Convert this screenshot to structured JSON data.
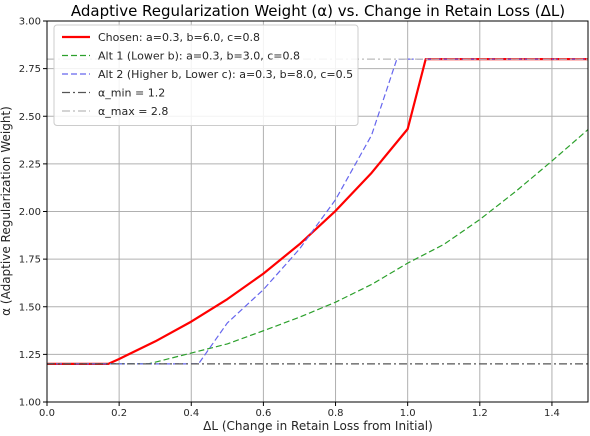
{
  "chart_data": {
    "type": "line",
    "title": "Adaptive Regularization Weight (α) vs. Change in Retain Loss (ΔL)",
    "xlabel": "ΔL (Change in Retain Loss from Initial)",
    "ylabel": "α (Adaptive Regularization Weight)",
    "xlim": [
      0,
      1.5
    ],
    "ylim": [
      1.0,
      3.0
    ],
    "xticks": [
      "0.0",
      "0.2",
      "0.4",
      "0.6",
      "0.8",
      "1.0",
      "1.2",
      "1.4"
    ],
    "yticks": [
      "1.00",
      "1.25",
      "1.50",
      "1.75",
      "2.00",
      "2.25",
      "2.50",
      "2.75",
      "3.00"
    ],
    "grid": true,
    "legend_position": "top-left",
    "series": [
      {
        "name": "Chosen: a=0.3, b=6.0, c=0.8",
        "color": "#ff0000",
        "style": "solid",
        "x": [
          0.0,
          0.17,
          0.2,
          0.3,
          0.4,
          0.5,
          0.6,
          0.7,
          0.8,
          0.9,
          1.0,
          1.05,
          1.5
        ],
        "y": [
          1.2,
          1.2,
          1.226,
          1.318,
          1.422,
          1.54,
          1.674,
          1.828,
          2.003,
          2.203,
          2.433,
          2.8,
          2.8
        ]
      },
      {
        "name": "Alt 1 (Lower b): a=0.3, b=3.0, c=0.8",
        "color": "#2ca02c",
        "style": "dashed",
        "x": [
          0.0,
          0.28,
          0.3,
          0.4,
          0.5,
          0.6,
          0.7,
          0.8,
          0.9,
          1.0,
          1.1,
          1.2,
          1.3,
          1.4,
          1.5
        ],
        "y": [
          1.2,
          1.2,
          1.209,
          1.257,
          1.305,
          1.374,
          1.445,
          1.524,
          1.617,
          1.729,
          1.827,
          1.958,
          2.106,
          2.265,
          2.43
        ]
      },
      {
        "name": "Alt 2 (Higher b, Lower c): a=0.3, b=8.0, c=0.5",
        "color": "#6666ee",
        "style": "dashed",
        "x": [
          0.0,
          0.42,
          0.5,
          0.6,
          0.7,
          0.8,
          0.9,
          0.97,
          1.5
        ],
        "y": [
          1.2,
          1.2,
          1.415,
          1.59,
          1.803,
          2.062,
          2.401,
          2.8,
          2.8
        ]
      },
      {
        "name": "α_min = 1.2",
        "color": "#555555",
        "style": "dashdot",
        "x": [
          0.0,
          1.5
        ],
        "y": [
          1.2,
          1.2
        ]
      },
      {
        "name": "α_max = 2.8",
        "color": "#bbbbbb",
        "style": "dashdot",
        "x": [
          0.0,
          1.5
        ],
        "y": [
          2.8,
          2.8
        ]
      }
    ]
  }
}
